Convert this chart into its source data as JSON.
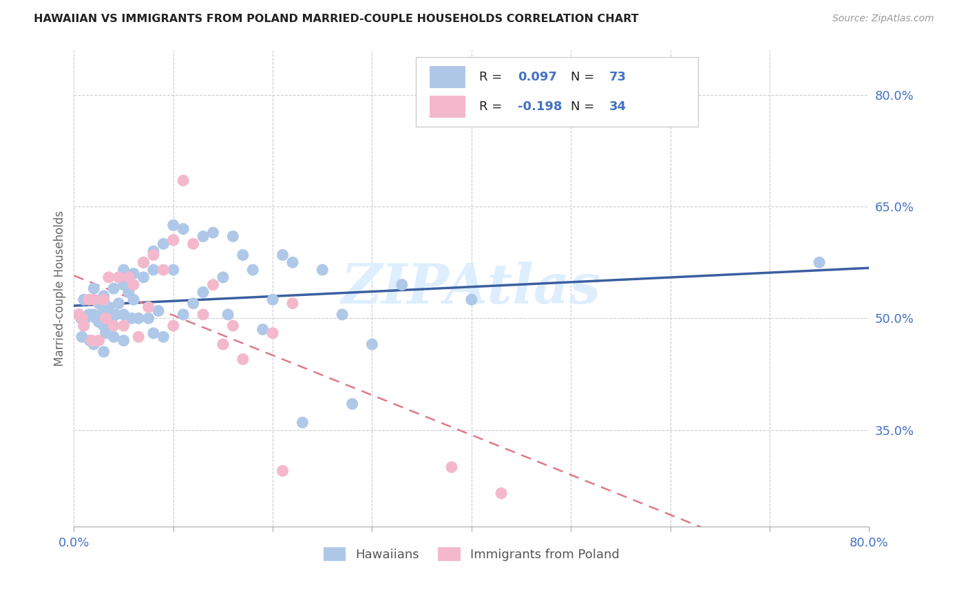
{
  "title": "HAWAIIAN VS IMMIGRANTS FROM POLAND MARRIED-COUPLE HOUSEHOLDS CORRELATION CHART",
  "source": "Source: ZipAtlas.com",
  "ylabel": "Married-couple Households",
  "x_min": 0.0,
  "x_max": 0.8,
  "y_min": 0.22,
  "y_max": 0.86,
  "y_ticks": [
    0.35,
    0.5,
    0.65,
    0.8
  ],
  "y_tick_labels": [
    "35.0%",
    "50.0%",
    "65.0%",
    "80.0%"
  ],
  "x_ticks": [
    0.0,
    0.1,
    0.2,
    0.3,
    0.4,
    0.5,
    0.6,
    0.7,
    0.8
  ],
  "x_tick_labels": [
    "0.0%",
    "",
    "",
    "",
    "",
    "",
    "",
    "",
    "80.0%"
  ],
  "legend_label1": "Hawaiians",
  "legend_label2": "Immigrants from Poland",
  "R1": "0.097",
  "N1": "73",
  "R2": "-0.198",
  "N2": "34",
  "color_blue": "#AFC8E8",
  "color_pink": "#F4B8CC",
  "color_blue_line": "#3B5FA0",
  "color_pink_line": "#E07888",
  "color_blue_text": "#4472C4",
  "color_value_text": "#4472C4",
  "watermark_text": "ZIPAtlas",
  "watermark_color": "#DDEEFF",
  "blue_scatter_x": [
    0.005,
    0.007,
    0.008,
    0.01,
    0.01,
    0.012,
    0.015,
    0.016,
    0.018,
    0.02,
    0.02,
    0.02,
    0.022,
    0.025,
    0.025,
    0.028,
    0.03,
    0.03,
    0.03,
    0.03,
    0.032,
    0.035,
    0.035,
    0.038,
    0.04,
    0.04,
    0.04,
    0.042,
    0.045,
    0.05,
    0.05,
    0.05,
    0.05,
    0.055,
    0.058,
    0.06,
    0.06,
    0.065,
    0.07,
    0.07,
    0.075,
    0.08,
    0.08,
    0.08,
    0.085,
    0.09,
    0.09,
    0.1,
    0.1,
    0.1,
    0.11,
    0.11,
    0.12,
    0.13,
    0.13,
    0.14,
    0.15,
    0.155,
    0.16,
    0.17,
    0.18,
    0.19,
    0.2,
    0.21,
    0.22,
    0.23,
    0.25,
    0.27,
    0.28,
    0.3,
    0.33,
    0.4,
    0.75
  ],
  "blue_scatter_y": [
    0.505,
    0.5,
    0.475,
    0.525,
    0.49,
    0.5,
    0.505,
    0.47,
    0.505,
    0.54,
    0.505,
    0.465,
    0.5,
    0.495,
    0.52,
    0.5,
    0.53,
    0.51,
    0.49,
    0.455,
    0.48,
    0.515,
    0.505,
    0.5,
    0.54,
    0.505,
    0.475,
    0.505,
    0.52,
    0.565,
    0.545,
    0.505,
    0.47,
    0.535,
    0.5,
    0.56,
    0.525,
    0.5,
    0.575,
    0.555,
    0.5,
    0.59,
    0.565,
    0.48,
    0.51,
    0.6,
    0.475,
    0.625,
    0.605,
    0.565,
    0.62,
    0.505,
    0.52,
    0.61,
    0.535,
    0.615,
    0.555,
    0.505,
    0.61,
    0.585,
    0.565,
    0.485,
    0.525,
    0.585,
    0.575,
    0.36,
    0.565,
    0.505,
    0.385,
    0.465,
    0.545,
    0.525,
    0.575
  ],
  "pink_scatter_x": [
    0.005,
    0.008,
    0.01,
    0.015,
    0.018,
    0.02,
    0.025,
    0.03,
    0.032,
    0.035,
    0.04,
    0.045,
    0.05,
    0.055,
    0.06,
    0.065,
    0.07,
    0.075,
    0.08,
    0.09,
    0.1,
    0.1,
    0.11,
    0.12,
    0.13,
    0.14,
    0.15,
    0.16,
    0.17,
    0.2,
    0.21,
    0.22,
    0.38,
    0.43
  ],
  "pink_scatter_y": [
    0.505,
    0.5,
    0.49,
    0.525,
    0.47,
    0.525,
    0.47,
    0.525,
    0.5,
    0.555,
    0.49,
    0.555,
    0.49,
    0.555,
    0.545,
    0.475,
    0.575,
    0.515,
    0.585,
    0.565,
    0.49,
    0.605,
    0.685,
    0.6,
    0.505,
    0.545,
    0.465,
    0.49,
    0.445,
    0.48,
    0.295,
    0.52,
    0.3,
    0.265
  ]
}
